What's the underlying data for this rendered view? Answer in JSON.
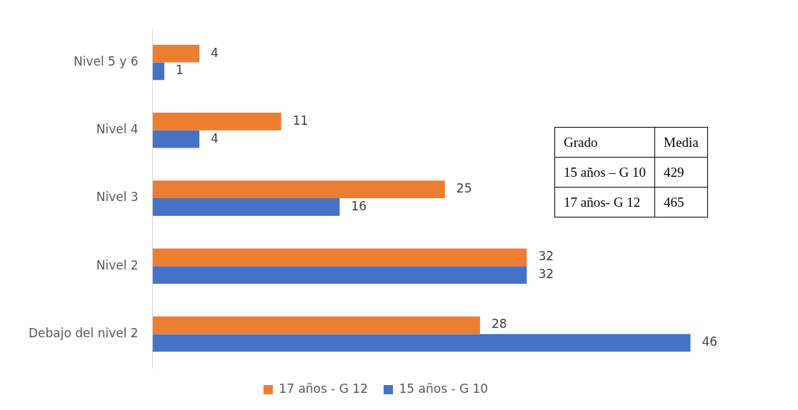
{
  "chart_data": {
    "type": "bar",
    "orientation": "horizontal",
    "categories": [
      "Nivel 5 y 6",
      "Nivel 4",
      "Nivel 3",
      "Nivel 2",
      "Debajo del nivel 2"
    ],
    "series": [
      {
        "name": "17 años - G 12",
        "color": "#ed7d31",
        "values": [
          4,
          11,
          25,
          32,
          28
        ]
      },
      {
        "name": "15 años - G 10",
        "color": "#4472c4",
        "values": [
          1,
          4,
          16,
          32,
          46
        ]
      }
    ],
    "data_labels": true,
    "legend": "bottom",
    "annotations": [
      "Grado",
      "Media",
      "15 años – G 10",
      "429",
      "17 años- G 12",
      "465"
    ]
  }
}
